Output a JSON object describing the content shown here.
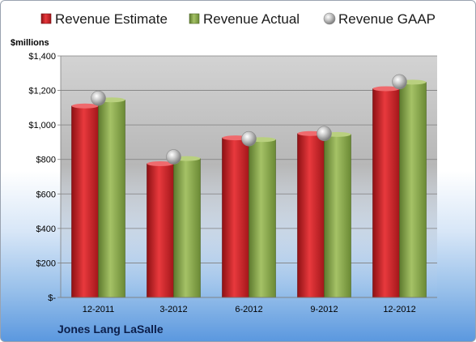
{
  "company": "Jones Lang LaSalle",
  "colors": {
    "estimate": "#d8232a",
    "actual": "#8fae4f",
    "gaap": "#bfbfbf"
  },
  "chart_data": {
    "type": "bar",
    "ylabel": "$millions",
    "xlabel": "",
    "title": "",
    "ylim": [
      0,
      1400
    ],
    "yticks": [
      0,
      200,
      400,
      600,
      800,
      1000,
      1200,
      1400
    ],
    "ytick_labels": [
      "$-",
      "$200",
      "$400",
      "$600",
      "$800",
      "$1,000",
      "$1,200",
      "$1,400"
    ],
    "categories": [
      "12-2011",
      "3-2012",
      "6-2012",
      "9-2012",
      "12-2012"
    ],
    "legend_position": "top",
    "grid": true,
    "series": [
      {
        "name": "Revenue Estimate",
        "type": "bar",
        "color_key": "estimate",
        "values": [
          1110,
          775,
          925,
          950,
          1210
        ]
      },
      {
        "name": "Revenue Actual",
        "type": "bar",
        "color_key": "actual",
        "values": [
          1145,
          805,
          915,
          945,
          1248
        ]
      },
      {
        "name": "Revenue GAAP",
        "type": "marker",
        "color_key": "gaap",
        "values": [
          1155,
          815,
          920,
          950,
          1250
        ]
      }
    ]
  }
}
